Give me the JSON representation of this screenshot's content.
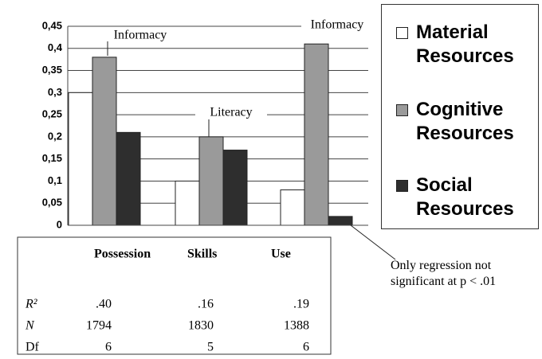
{
  "chart_data": {
    "type": "bar",
    "categories": [
      "Possession",
      "Skills",
      "Use"
    ],
    "series": [
      {
        "name": "Material Resources",
        "color": "#ffffff",
        "values": [
          0.3,
          0.1,
          0.08
        ]
      },
      {
        "name": "Cognitive Resources",
        "color": "#9a9a9a",
        "values": [
          0.38,
          0.2,
          0.41
        ]
      },
      {
        "name": "Social Resources",
        "color": "#2e2e2e",
        "values": [
          0.21,
          0.17,
          0.02
        ]
      }
    ],
    "ylim": [
      0,
      0.45
    ],
    "yticks": [
      0,
      {
        "value": 0.05,
        "label": "0,05"
      },
      {
        "value": 0.1,
        "label": "0,1"
      },
      {
        "value": 0.15,
        "label": "0,15"
      },
      {
        "value": 0.2,
        "label": "0,2"
      },
      {
        "value": 0.25,
        "label": "0,25"
      },
      {
        "value": 0.3,
        "label": "0,3"
      },
      {
        "value": 0.35,
        "label": "0,35"
      },
      {
        "value": 0.4,
        "label": "0,4"
      },
      {
        "value": 0.45,
        "label": "0,45"
      }
    ],
    "grid": true,
    "annotations": [
      "Informacy",
      "Literacy",
      "Informacy",
      "Only regression not significant at p < .01"
    ]
  },
  "table": {
    "rows": [
      [
        "R²",
        ".40",
        ".16",
        ".19"
      ],
      [
        "N",
        "1794",
        "1830",
        "1388"
      ],
      [
        "Df",
        "6",
        "5",
        "6"
      ]
    ]
  }
}
